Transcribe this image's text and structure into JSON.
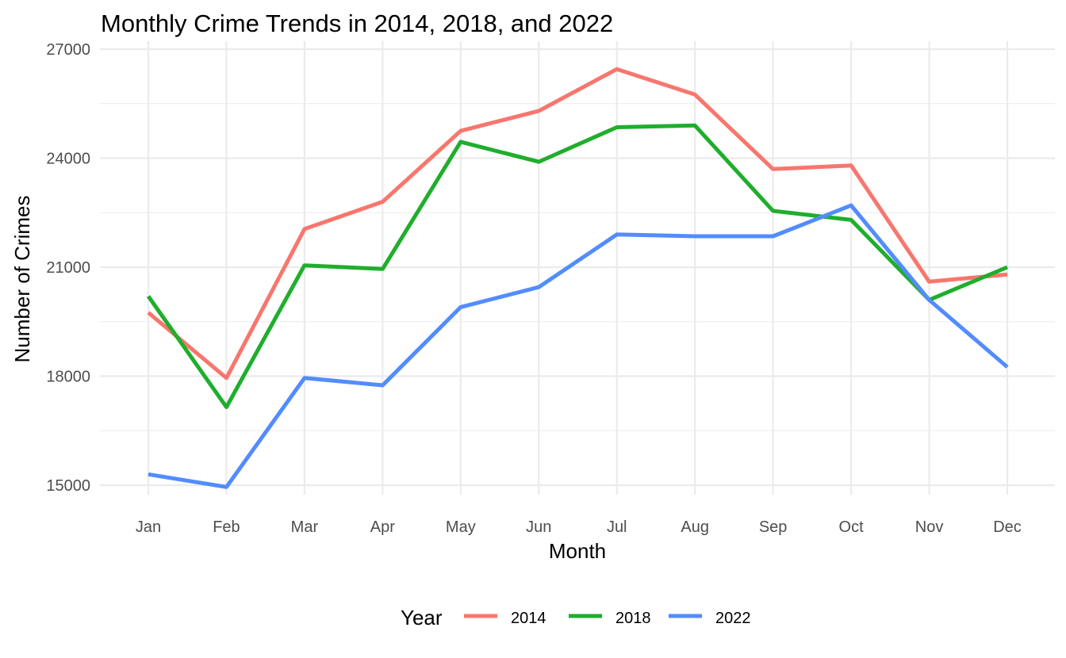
{
  "chart_data": {
    "type": "line",
    "title": "Monthly Crime Trends in 2014, 2018, and 2022",
    "xlabel": "Month",
    "ylabel": "Number of Crimes",
    "categories": [
      "Jan",
      "Feb",
      "Mar",
      "Apr",
      "May",
      "Jun",
      "Jul",
      "Aug",
      "Sep",
      "Oct",
      "Nov",
      "Dec"
    ],
    "ylim": [
      14950,
      27000
    ],
    "yticks": [
      15000,
      18000,
      21000,
      24000,
      27000
    ],
    "grid": true,
    "legend": {
      "title": "Year",
      "position": "bottom"
    },
    "series": [
      {
        "name": "2014",
        "color": "#f8766d",
        "values": [
          19750,
          17950,
          22050,
          22800,
          24750,
          25300,
          26450,
          25750,
          23700,
          23800,
          20600,
          20800
        ]
      },
      {
        "name": "2018",
        "color": "#1fae2c",
        "values": [
          20200,
          17150,
          21050,
          20950,
          24450,
          23900,
          24850,
          24900,
          22550,
          22300,
          20100,
          21000
        ]
      },
      {
        "name": "2022",
        "color": "#528cff",
        "values": [
          15300,
          14950,
          17950,
          17750,
          19900,
          20450,
          21900,
          21850,
          21850,
          22700,
          20100,
          18250
        ]
      }
    ]
  }
}
